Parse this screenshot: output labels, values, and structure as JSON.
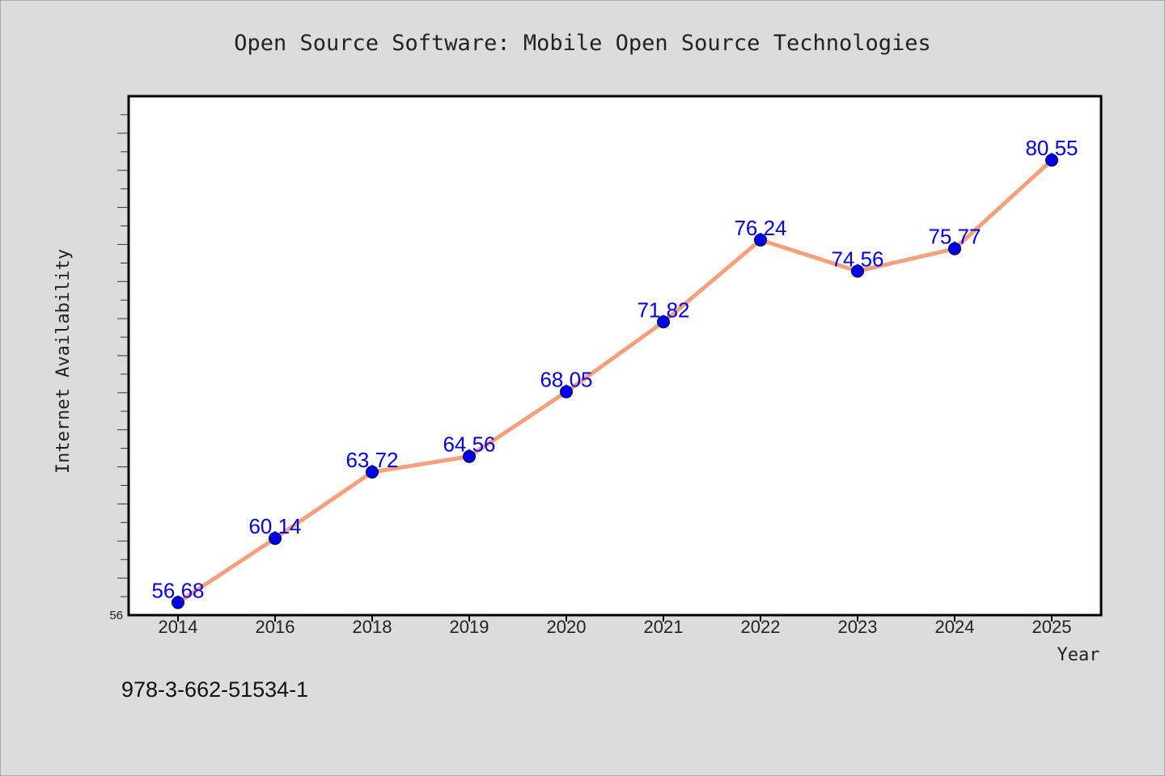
{
  "chart_data": {
    "type": "line",
    "title": "Open Source Software: Mobile Open Source Technologies",
    "xlabel": "Year",
    "ylabel": "Internet Availability",
    "categories": [
      "2014",
      "2016",
      "2018",
      "2019",
      "2020",
      "2021",
      "2022",
      "2023",
      "2024",
      "2025"
    ],
    "series": [
      {
        "values": [
          56.68,
          60.14,
          63.72,
          64.56,
          68.05,
          71.82,
          76.24,
          74.56,
          75.77,
          80.55
        ],
        "data_labels": [
          "56.68",
          "60.14",
          "63.72",
          "64.56",
          "68.05",
          "71.82",
          "76.24",
          "74.56",
          "75.77",
          "80.55"
        ]
      }
    ],
    "ylim": [
      56,
      84
    ],
    "y_tick_labels": [
      "56"
    ],
    "grid": false,
    "legend": "none",
    "colors": {
      "line": "#f5a07a",
      "marker": "#0000ee",
      "data_label": "#0000ee",
      "background": "#dcdcdc",
      "plot_area": "#ffffff"
    }
  },
  "footnote": "978-3-662-51534-1"
}
